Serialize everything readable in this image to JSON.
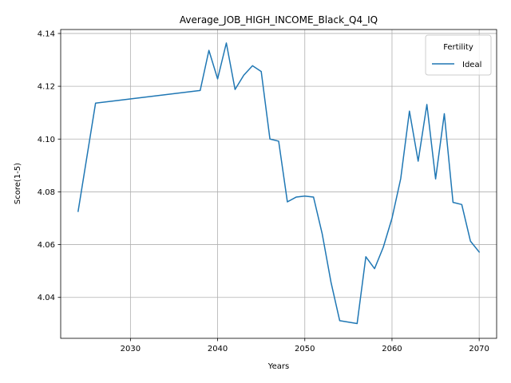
{
  "chart_data": {
    "type": "line",
    "title": "Average_JOB_HIGH_INCOME_Black_Q4_IQ",
    "xlabel": "Years",
    "ylabel": "Score(1-5)",
    "xlim": [
      2022,
      2072
    ],
    "ylim": [
      4.0245,
      4.1415
    ],
    "xticks": [
      2030,
      2040,
      2050,
      2060,
      2070
    ],
    "xtick_labels": [
      "2030",
      "2040",
      "2050",
      "2060",
      "2070"
    ],
    "yticks": [
      4.04,
      4.06,
      4.08,
      4.1,
      4.12,
      4.14
    ],
    "ytick_labels": [
      "4.04",
      "4.06",
      "4.08",
      "4.10",
      "4.12",
      "4.14"
    ],
    "grid": true,
    "legend": {
      "title": "Fertility",
      "placement": "top-right"
    },
    "series": [
      {
        "name": "Ideal",
        "color": "#1f77b4",
        "x": [
          2024,
          2026,
          2038,
          2039,
          2040,
          2041,
          2042,
          2043,
          2044,
          2045,
          2046,
          2047,
          2048,
          2049,
          2050,
          2051,
          2052,
          2053,
          2054,
          2056,
          2057,
          2058,
          2059,
          2060,
          2061,
          2062,
          2063,
          2064,
          2065,
          2066,
          2067,
          2068,
          2069,
          2070
        ],
        "y": [
          4.0726,
          4.1136,
          4.1184,
          4.1336,
          4.1228,
          4.1364,
          4.1188,
          4.1242,
          4.1278,
          4.1256,
          4.1,
          4.0992,
          4.0762,
          4.078,
          4.0784,
          4.078,
          4.064,
          4.0458,
          4.0312,
          4.0301,
          4.0554,
          4.0509,
          4.059,
          4.07,
          4.085,
          4.1106,
          4.0916,
          4.1131,
          4.0849,
          4.1096,
          4.076,
          4.0752,
          4.0613,
          4.0572
        ]
      }
    ]
  }
}
